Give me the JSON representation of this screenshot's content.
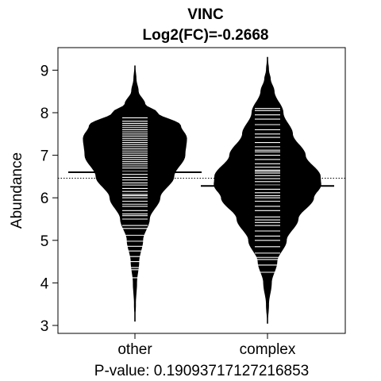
{
  "chart_data": {
    "type": "violin",
    "title": "VINC",
    "subtitle": "Log2(FC)=-0.2668",
    "ylabel": "Abundance",
    "xlabel": "P-value: 0.19093717127216853",
    "categories": [
      "other",
      "complex"
    ],
    "ylim": [
      2.8,
      9.5
    ],
    "yticks": [
      3,
      4,
      5,
      6,
      7,
      8,
      9
    ],
    "grid": false,
    "reference_line": 6.46,
    "groups": [
      {
        "name": "other",
        "mean": 6.6,
        "y_min": 3.1,
        "y_max": 9.1,
        "density": [
          [
            3.1,
            0.0
          ],
          [
            3.5,
            0.01
          ],
          [
            4.0,
            0.03
          ],
          [
            4.5,
            0.07
          ],
          [
            5.0,
            0.14
          ],
          [
            5.5,
            0.26
          ],
          [
            6.0,
            0.45
          ],
          [
            6.5,
            0.7
          ],
          [
            7.0,
            0.9
          ],
          [
            7.4,
            0.93
          ],
          [
            7.7,
            0.82
          ],
          [
            8.0,
            0.4
          ],
          [
            8.2,
            0.18
          ],
          [
            8.5,
            0.06
          ],
          [
            8.8,
            0.02
          ],
          [
            9.1,
            0.0
          ]
        ],
        "points": [
          4.12,
          4.31,
          4.36,
          4.5,
          4.62,
          4.75,
          4.86,
          4.98,
          5.12,
          5.28,
          5.35,
          5.5,
          5.58,
          5.62,
          5.7,
          5.8,
          5.85,
          5.92,
          6.0,
          6.05,
          6.08,
          6.15,
          6.22,
          6.3,
          6.35,
          6.42,
          6.48,
          6.55,
          6.6,
          6.62,
          6.7,
          6.75,
          6.8,
          6.85,
          6.9,
          6.95,
          7.0,
          7.05,
          7.1,
          7.15,
          7.2,
          7.25,
          7.3,
          7.35,
          7.4,
          7.45,
          7.5,
          7.55,
          7.6,
          7.65,
          7.7,
          7.75,
          7.8,
          7.88
        ]
      },
      {
        "name": "complex",
        "mean": 6.28,
        "y_min": 3.05,
        "y_max": 9.3,
        "density": [
          [
            3.05,
            0.0
          ],
          [
            3.5,
            0.02
          ],
          [
            4.0,
            0.07
          ],
          [
            4.5,
            0.17
          ],
          [
            5.0,
            0.34
          ],
          [
            5.5,
            0.55
          ],
          [
            6.0,
            0.83
          ],
          [
            6.3,
            0.96
          ],
          [
            6.5,
            0.95
          ],
          [
            7.0,
            0.68
          ],
          [
            7.5,
            0.45
          ],
          [
            8.0,
            0.28
          ],
          [
            8.5,
            0.12
          ],
          [
            8.8,
            0.05
          ],
          [
            9.0,
            0.02
          ],
          [
            9.3,
            0.0
          ]
        ],
        "points": [
          4.25,
          4.42,
          4.55,
          4.6,
          4.7,
          4.85,
          5.0,
          5.1,
          5.22,
          5.35,
          5.42,
          5.48,
          5.55,
          5.7,
          5.8,
          5.92,
          6.0,
          6.05,
          6.12,
          6.2,
          6.3,
          6.38,
          6.45,
          6.52,
          6.58,
          6.62,
          6.65,
          6.72,
          6.8,
          6.9,
          7.0,
          7.08,
          7.12,
          7.2,
          7.3,
          7.42,
          7.5,
          7.6,
          7.72,
          7.85,
          7.95,
          8.05,
          8.1
        ]
      }
    ]
  }
}
